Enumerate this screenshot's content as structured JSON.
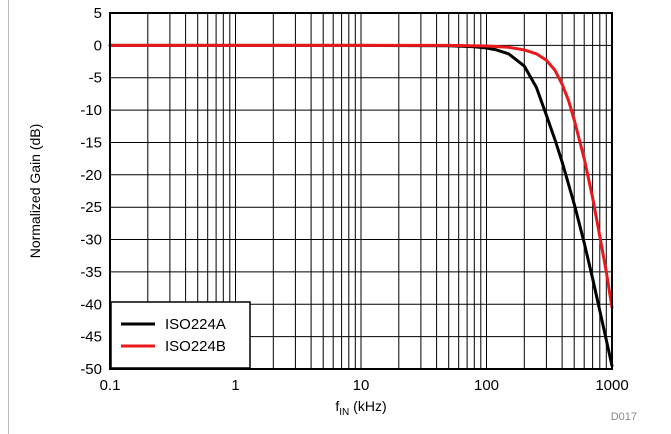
{
  "chart_data": {
    "type": "line",
    "xlabel_main": "f",
    "xlabel_sub": "IN",
    "xlabel_unit": " (kHz)",
    "ylabel": "Normalized Gain (dB)",
    "x_scale": "log",
    "xlim": [
      0.1,
      1000
    ],
    "ylim": [
      -50,
      5
    ],
    "x_ticks": [
      0.1,
      1,
      10,
      100,
      1000
    ],
    "x_tick_labels": [
      "0.1",
      "1",
      "10",
      "100",
      "1000"
    ],
    "y_ticks": [
      5,
      0,
      -5,
      -10,
      -15,
      -20,
      -25,
      -30,
      -35,
      -40,
      -45,
      -50
    ],
    "y_tick_labels": [
      "5",
      "0",
      "-5",
      "-10",
      "-15",
      "-20",
      "-25",
      "-30",
      "-35",
      "-40",
      "-45",
      "-50"
    ],
    "grid": true,
    "legend_position": "bottom-left",
    "figure_code": "D017",
    "series": [
      {
        "name": "ISO224A",
        "color": "#000000",
        "x": [
          0.1,
          1,
          10,
          50,
          80,
          100,
          120,
          150,
          200,
          250,
          300,
          350,
          400,
          500,
          600,
          700,
          800,
          900,
          1000
        ],
        "y": [
          0,
          0,
          0,
          -0.05,
          -0.2,
          -0.4,
          -0.7,
          -1.3,
          -3.2,
          -6.5,
          -10.8,
          -14.5,
          -18.0,
          -24.5,
          -30.5,
          -36.0,
          -41.0,
          -45.5,
          -49.5
        ]
      },
      {
        "name": "ISO224B",
        "color": "#e8191c",
        "x": [
          0.1,
          1,
          10,
          50,
          100,
          150,
          200,
          250,
          300,
          350,
          400,
          450,
          500,
          600,
          700,
          800,
          900,
          1000
        ],
        "y": [
          0,
          0,
          0,
          0,
          -0.1,
          -0.3,
          -0.7,
          -1.3,
          -2.3,
          -3.8,
          -6.0,
          -8.5,
          -11.5,
          -17.5,
          -23.5,
          -29.5,
          -35.0,
          -40.5
        ]
      }
    ]
  }
}
